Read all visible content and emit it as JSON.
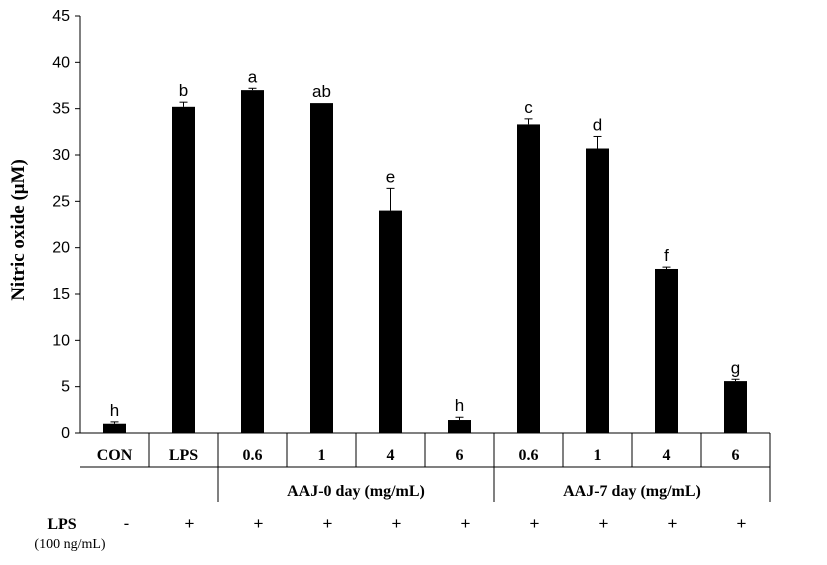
{
  "chart_data": {
    "type": "bar",
    "ylabel": "Nitric oxide (μM)",
    "ylim": [
      0,
      45
    ],
    "yticks": [
      0,
      5,
      10,
      15,
      20,
      25,
      30,
      35,
      40,
      45
    ],
    "categories": [
      "CON",
      "LPS",
      "0.6",
      "1",
      "4",
      "6",
      "0.6",
      "1",
      "4",
      "6"
    ],
    "values": [
      1.0,
      35.2,
      37.0,
      35.6,
      24.0,
      1.4,
      33.3,
      30.7,
      17.7,
      5.6
    ],
    "errors": [
      0.2,
      0.5,
      0.2,
      0.0,
      2.4,
      0.3,
      0.6,
      1.3,
      0.2,
      0.2
    ],
    "significance": [
      "h",
      "b",
      "a",
      "ab",
      "e",
      "h",
      "c",
      "d",
      "f",
      "g"
    ],
    "groups": [
      {
        "label": "AAJ-0 day (mg/mL)",
        "from": 2,
        "to": 5
      },
      {
        "label": "AAJ-7 day (mg/mL)",
        "from": 6,
        "to": 9
      }
    ],
    "treatment_row": {
      "label": "LPS",
      "sublabel": "(100 ng/mL)",
      "marks": [
        "-",
        "+",
        "+",
        "+",
        "+",
        "+",
        "+",
        "+",
        "+",
        "+"
      ]
    },
    "bar_color": "#000000",
    "grid": false
  }
}
